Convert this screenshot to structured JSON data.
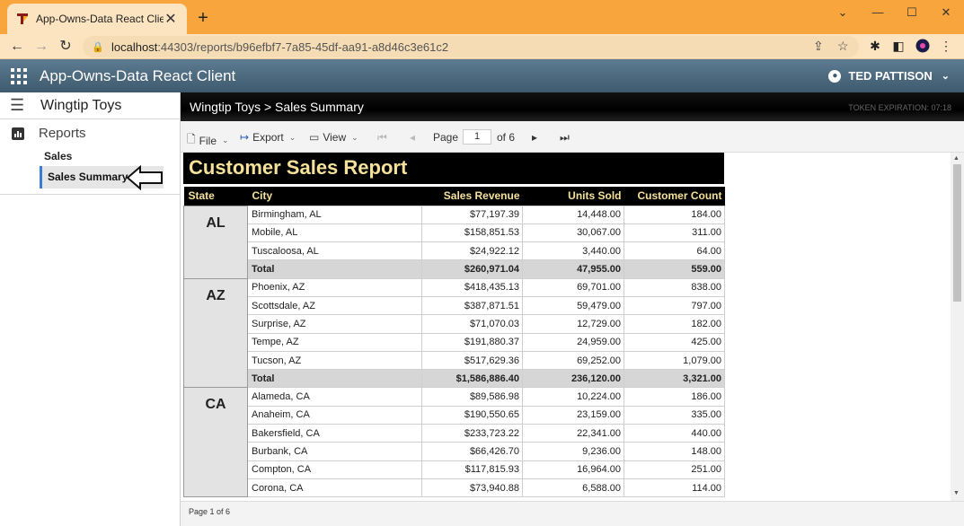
{
  "browser": {
    "tab_title": "App-Owns-Data React Client",
    "tab_close": "✕",
    "new_tab": "+",
    "url_host": "localhost",
    "url_rest": ":44303/reports/b96efbf7-7a85-45df-aa91-a8d46c3e61c2"
  },
  "app": {
    "title": "App-Owns-Data React Client",
    "user_name": "TED PATTISON"
  },
  "nav": {
    "workspace": "Wingtip Toys",
    "reports_label": "Reports",
    "sub_items": [
      "Sales",
      "Sales Summary"
    ],
    "selected": "Sales Summary"
  },
  "report_header": {
    "breadcrumb": "Wingtip Toys > Sales Summary",
    "token": "TOKEN EXPIRATION: 07:18"
  },
  "report_toolbar": {
    "file": "File",
    "export": "Export",
    "view": "View",
    "page_label": "Page",
    "page_value": "1",
    "page_of": "of 6"
  },
  "report": {
    "title": "Customer Sales Report",
    "columns": [
      "State",
      "City",
      "Sales Revenue",
      "Units Sold",
      "Customer Count"
    ],
    "groups": [
      {
        "state": "AL",
        "rows": [
          [
            "Birmingham, AL",
            "$77,197.39",
            "14,448.00",
            "184.00"
          ],
          [
            "Mobile, AL",
            "$158,851.53",
            "30,067.00",
            "311.00"
          ],
          [
            "Tuscaloosa, AL",
            "$24,922.12",
            "3,440.00",
            "64.00"
          ]
        ],
        "total": [
          "Total",
          "$260,971.04",
          "47,955.00",
          "559.00"
        ]
      },
      {
        "state": "AZ",
        "rows": [
          [
            "Phoenix, AZ",
            "$418,435.13",
            "69,701.00",
            "838.00"
          ],
          [
            "Scottsdale, AZ",
            "$387,871.51",
            "59,479.00",
            "797.00"
          ],
          [
            "Surprise, AZ",
            "$71,070.03",
            "12,729.00",
            "182.00"
          ],
          [
            "Tempe, AZ",
            "$191,880.37",
            "24,959.00",
            "425.00"
          ],
          [
            "Tucson, AZ",
            "$517,629.36",
            "69,252.00",
            "1,079.00"
          ]
        ],
        "total": [
          "Total",
          "$1,586,886.40",
          "236,120.00",
          "3,321.00"
        ]
      },
      {
        "state": "CA",
        "rows": [
          [
            "Alameda, CA",
            "$89,586.98",
            "10,224.00",
            "186.00"
          ],
          [
            "Anaheim, CA",
            "$190,550.65",
            "23,159.00",
            "335.00"
          ],
          [
            "Bakersfield, CA",
            "$233,723.22",
            "22,341.00",
            "440.00"
          ],
          [
            "Burbank, CA",
            "$66,426.70",
            "9,236.00",
            "148.00"
          ],
          [
            "Compton, CA",
            "$117,815.93",
            "16,964.00",
            "251.00"
          ],
          [
            "Corona, CA",
            "$73,940.88",
            "6,588.00",
            "114.00"
          ]
        ],
        "total": null
      }
    ]
  },
  "status": {
    "page_text": "Page 1 of 6"
  },
  "colors": {
    "chrome_tab_bar": "#f9a53d",
    "app_header": "#4a687d",
    "report_title_text": "#f5e199",
    "nav_selected_border": "#3a7bd5"
  }
}
